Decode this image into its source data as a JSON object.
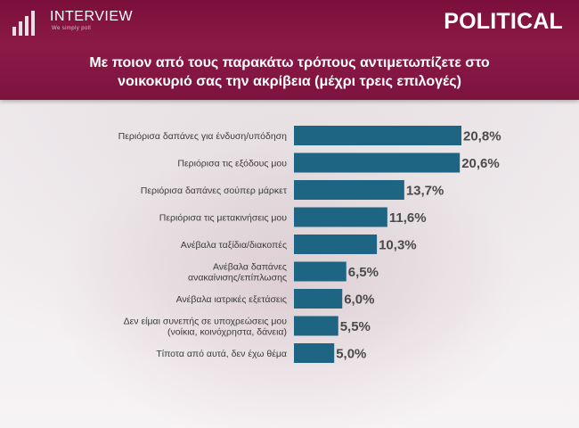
{
  "header": {
    "logo_name": "INTERVIEW",
    "logo_tagline": "We simply poll",
    "brand": "POLITICAL",
    "title_lines": [
      "Με ποιον από τους παρακάτω τρόπους αντιμετωπίζετε στο",
      "νοικοκυριό σας την ακρίβεια (μέχρι τρεις επιλογές)"
    ]
  },
  "colors": {
    "header": "#7d1240",
    "bar": "#1d6582",
    "label": "#3a3a3a",
    "value": "#4a4a4a"
  },
  "chart_data": {
    "type": "bar",
    "orientation": "horizontal",
    "title": "Με ποιον από τους παρακάτω τρόπους αντιμετωπίζετε στο νοικοκυριό σας την ακρίβεια (μέχρι τρεις επιλογές)",
    "categories": [
      [
        "Περιόρισα δαπάνες για ένδυση/υπόδηση"
      ],
      [
        "Περιόρισα τις εξόδους μου"
      ],
      [
        "Περιόρισα δαπάνες σούπερ μάρκετ"
      ],
      [
        "Περιόρισα τις μετακινήσεις μου"
      ],
      [
        "Ανέβαλα ταξίδια/διακοπές"
      ],
      [
        "Ανέβαλα δαπάνες",
        "ανακαίνισης/επίπλωσης"
      ],
      [
        "Ανέβαλα ιατρικές εξετάσεις"
      ],
      [
        "Δεν είμαι συνεπής σε υποχρεώσεις μου",
        "(νοίκια, κοινόχρηστα, δάνεια)"
      ],
      [
        "Τίποτα από αυτά, δεν έχω θέμα"
      ]
    ],
    "values": [
      20.8,
      20.6,
      13.7,
      11.6,
      10.3,
      6.5,
      6.0,
      5.5,
      5.0
    ],
    "value_labels": [
      "20,8%",
      "20,6%",
      "13,7%",
      "11,6%",
      "10,3%",
      "6,5%",
      "6,0%",
      "5,5%",
      "5,0%"
    ],
    "xlim": [
      0,
      20.8
    ],
    "grid": false,
    "legend": "none"
  }
}
